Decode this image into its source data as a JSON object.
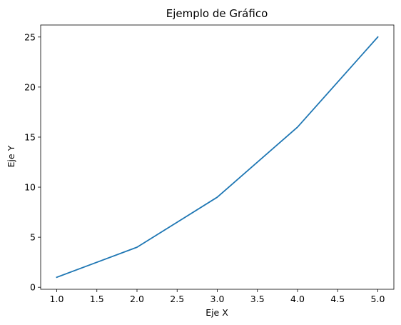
{
  "chart_data": {
    "type": "line",
    "title": "Ejemplo de Gráfico",
    "xlabel": "Eje X",
    "ylabel": "Eje Y",
    "x": [
      1,
      2,
      3,
      4,
      5
    ],
    "series": [
      {
        "values": [
          1,
          4,
          9,
          16,
          25
        ],
        "color": "#1f77b4"
      }
    ],
    "xlim": [
      0.8,
      5.2
    ],
    "ylim": [
      -0.2,
      26.2
    ],
    "xticks": [
      "1.0",
      "1.5",
      "2.0",
      "2.5",
      "3.0",
      "3.5",
      "4.0",
      "4.5",
      "5.0"
    ],
    "yticks": [
      "0",
      "5",
      "10",
      "15",
      "20",
      "25"
    ],
    "grid": false,
    "legend": "none"
  }
}
